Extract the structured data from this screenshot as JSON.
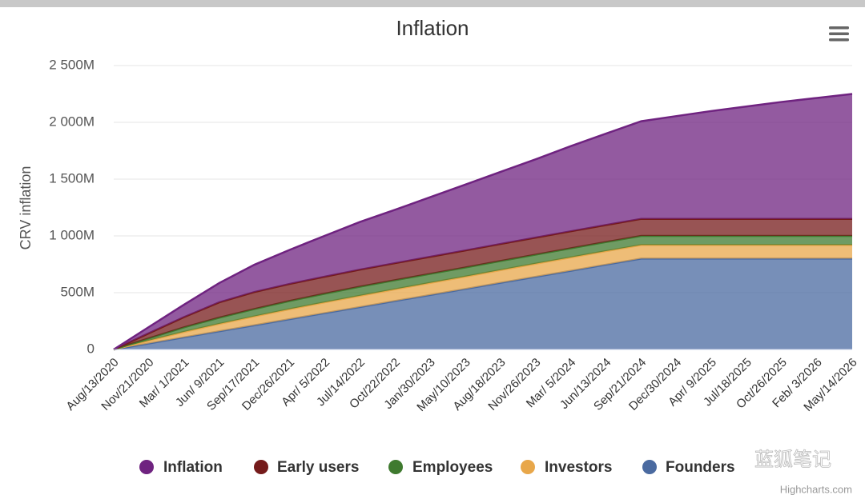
{
  "chart_data": {
    "type": "area",
    "stacked": true,
    "title": "Inflation",
    "y_axis_label": "CRV inflation",
    "categories": [
      "Aug/13/2020",
      "Nov/21/2020",
      "Mar/ 1/2021",
      "Jun/ 9/2021",
      "Sep/17/2021",
      "Dec/26/2021",
      "Apr/ 5/2022",
      "Jul/14/2022",
      "Oct/22/2022",
      "Jan/30/2023",
      "May/10/2023",
      "Aug/18/2023",
      "Nov/26/2023",
      "Mar/ 5/2024",
      "Jun/13/2024",
      "Sep/21/2024",
      "Dec/30/2024",
      "Apr/ 9/2025",
      "Jul/18/2025",
      "Oct/26/2025",
      "Feb/ 3/2026",
      "May/14/2026"
    ],
    "series": [
      {
        "name": "Inflation",
        "color": "#6f2380",
        "values": [
          0,
          55,
          110,
          170,
          240,
          300,
          360,
          420,
          470,
          525,
          580,
          635,
          690,
          750,
          805,
          860,
          905,
          950,
          990,
          1030,
          1065,
          1100
        ]
      },
      {
        "name": "Early users",
        "color": "#751b1b",
        "values": [
          0,
          45,
          90,
          135,
          150,
          150,
          150,
          150,
          150,
          150,
          150,
          150,
          150,
          150,
          150,
          150,
          150,
          150,
          150,
          150,
          150,
          150
        ]
      },
      {
        "name": "Employees",
        "color": "#3f7a2f",
        "values": [
          0,
          20,
          40,
          55,
          65,
          72,
          76,
          80,
          80,
          80,
          80,
          80,
          80,
          80,
          80,
          80,
          80,
          80,
          80,
          80,
          80,
          80
        ]
      },
      {
        "name": "Investors",
        "color": "#e8a74a",
        "values": [
          0,
          25,
          48,
          65,
          78,
          88,
          95,
          100,
          103,
          106,
          109,
          112,
          115,
          118,
          119,
          120,
          120,
          120,
          120,
          120,
          120,
          120
        ]
      },
      {
        "name": "Founders",
        "color": "#4a6aa0",
        "values": [
          0,
          53,
          107,
          160,
          213,
          267,
          320,
          373,
          427,
          480,
          533,
          587,
          640,
          693,
          747,
          800,
          800,
          800,
          800,
          800,
          800,
          800
        ]
      }
    ],
    "ylim": [
      0,
      2500
    ],
    "yticks": [
      0,
      {
        "value": 500,
        "label": "500M"
      },
      {
        "value": 1000,
        "label": "1 000M"
      },
      {
        "value": 1500,
        "label": "1 500M"
      },
      {
        "value": 2000,
        "label": "2 000M"
      },
      {
        "value": 2500,
        "label": "2 500M"
      }
    ],
    "grid": true,
    "legend": "bottom",
    "credits": "Highcharts.com",
    "watermark": "蓝狐笔记"
  }
}
